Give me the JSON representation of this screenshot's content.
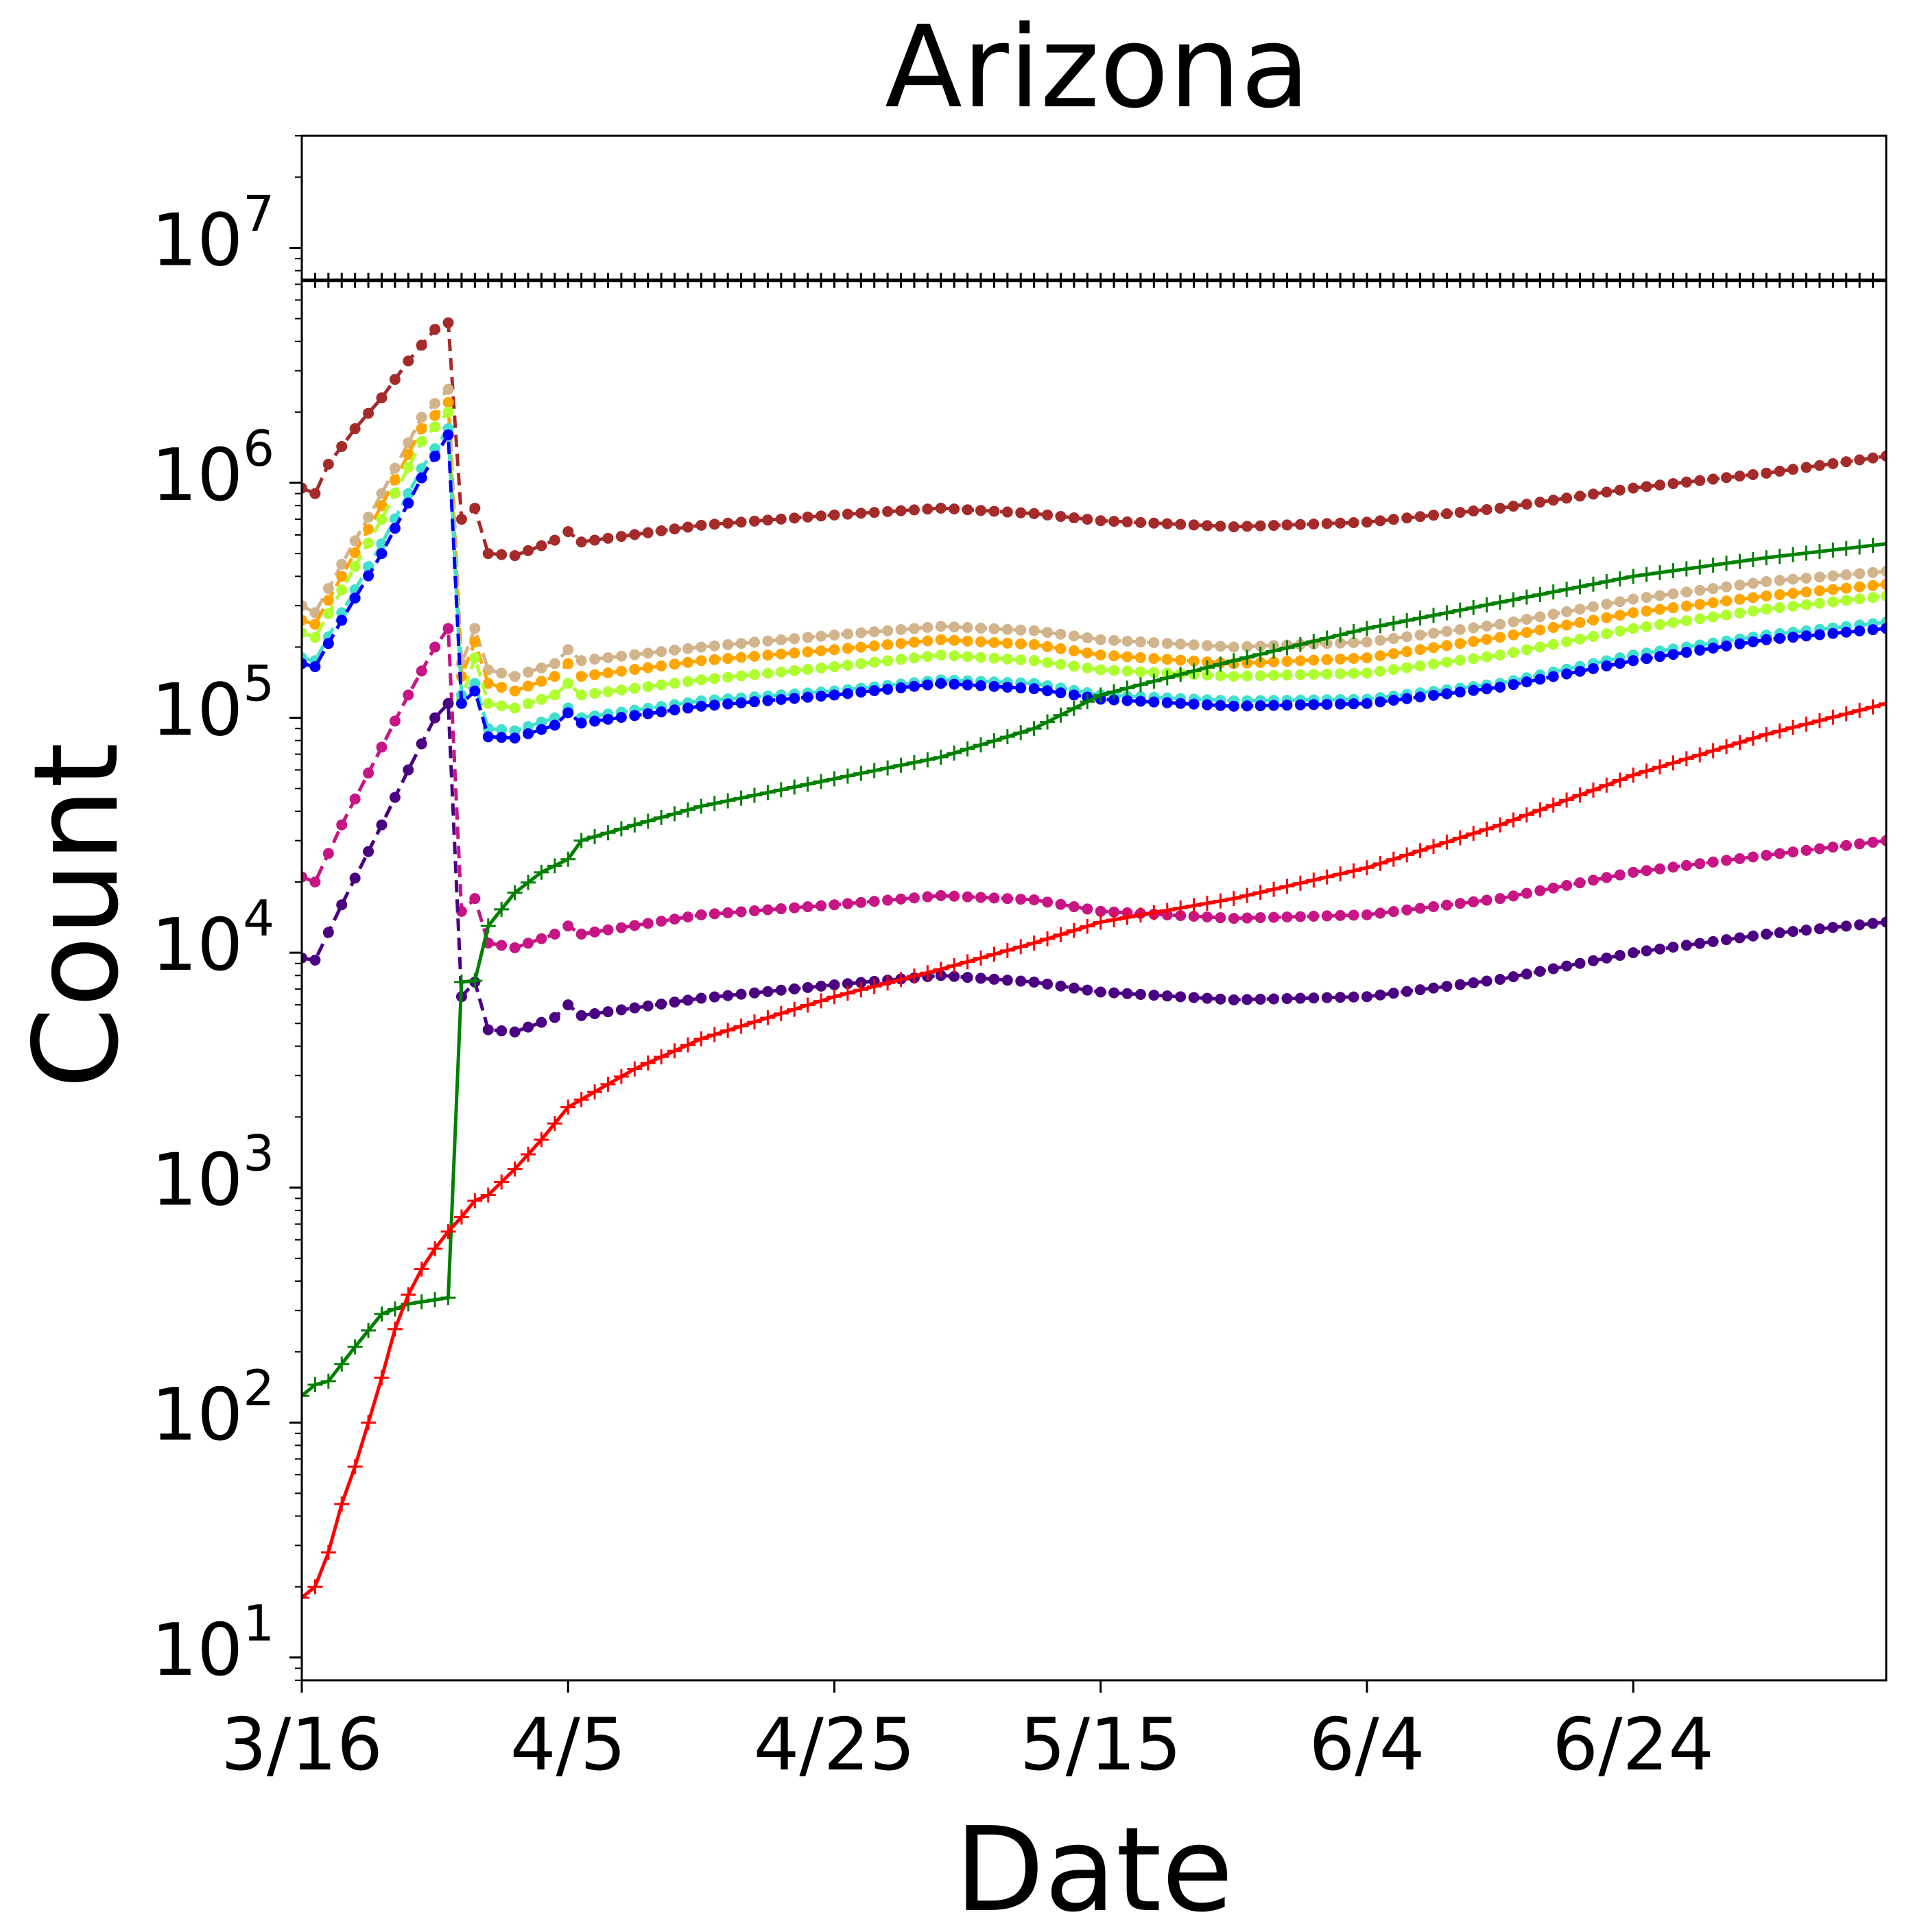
{
  "chart_data": {
    "type": "line",
    "title": "Arizona",
    "xlabel": "Date",
    "ylabel": "Count",
    "yscale": "log",
    "grid": false,
    "legend": "none",
    "x_start": "3/16",
    "x_end": "7/13",
    "xlim": [
      "3/16",
      "7/13"
    ],
    "ylim": [
      8,
      30000000
    ],
    "x_ticks": [
      {
        "date": "3/16",
        "label": "3/16"
      },
      {
        "date": "4/5",
        "label": "4/5"
      },
      {
        "date": "4/25",
        "label": "4/25"
      },
      {
        "date": "5/15",
        "label": "5/15"
      },
      {
        "date": "6/4",
        "label": "6/4"
      },
      {
        "date": "6/24",
        "label": "6/24"
      }
    ],
    "y_ticks": [
      {
        "value": 10,
        "base": "10",
        "exp": "1"
      },
      {
        "value": 100,
        "base": "10",
        "exp": "2"
      },
      {
        "value": 1000,
        "base": "10",
        "exp": "3"
      },
      {
        "value": 10000,
        "base": "10",
        "exp": "4"
      },
      {
        "value": 100000,
        "base": "10",
        "exp": "5"
      },
      {
        "value": 1000000,
        "base": "10",
        "exp": "6"
      },
      {
        "value": 10000000,
        "base": "10",
        "exp": "7"
      }
    ],
    "series": [
      {
        "color": "#000000",
        "style": "solid",
        "marker": "plus",
        "points": [
          [
            "3/16",
            7279000
          ],
          [
            "7/13",
            7279000
          ]
        ]
      },
      {
        "color": "#a52a2a",
        "style": "dashed",
        "marker": "dot",
        "points": [
          [
            "3/16",
            950000
          ],
          [
            "3/17",
            900000
          ],
          [
            "3/18",
            1200000
          ],
          [
            "3/20",
            1700000
          ],
          [
            "3/22",
            2300000
          ],
          [
            "3/24",
            3300000
          ],
          [
            "3/26",
            4500000
          ],
          [
            "3/27",
            4800000
          ],
          [
            "3/28",
            700000
          ],
          [
            "3/29",
            780000
          ],
          [
            "3/30",
            500000
          ],
          [
            "4/1",
            490000
          ],
          [
            "4/3",
            540000
          ],
          [
            "4/4",
            570000
          ],
          [
            "4/5",
            620000
          ],
          [
            "4/6",
            560000
          ],
          [
            "4/15",
            660000
          ],
          [
            "4/25",
            730000
          ],
          [
            "5/3",
            780000
          ],
          [
            "5/10",
            740000
          ],
          [
            "5/15",
            690000
          ],
          [
            "5/25",
            650000
          ],
          [
            "6/4",
            680000
          ],
          [
            "6/14",
            780000
          ],
          [
            "6/24",
            950000
          ],
          [
            "7/4",
            1100000
          ],
          [
            "7/13",
            1300000
          ]
        ]
      },
      {
        "color": "#d2b48c",
        "style": "dashed",
        "marker": "dot",
        "points": [
          [
            "3/16",
            300000
          ],
          [
            "3/17",
            280000
          ],
          [
            "3/19",
            450000
          ],
          [
            "3/22",
            900000
          ],
          [
            "3/25",
            1900000
          ],
          [
            "3/27",
            2500000
          ],
          [
            "3/28",
            170000
          ],
          [
            "3/29",
            240000
          ],
          [
            "3/30",
            160000
          ],
          [
            "4/1",
            150000
          ],
          [
            "4/4",
            170000
          ],
          [
            "4/5",
            195000
          ],
          [
            "4/6",
            175000
          ],
          [
            "4/15",
            200000
          ],
          [
            "4/25",
            225000
          ],
          [
            "5/3",
            245000
          ],
          [
            "5/10",
            235000
          ],
          [
            "5/15",
            215000
          ],
          [
            "5/25",
            200000
          ],
          [
            "6/4",
            210000
          ],
          [
            "6/14",
            250000
          ],
          [
            "6/24",
            320000
          ],
          [
            "7/4",
            380000
          ],
          [
            "7/13",
            420000
          ]
        ]
      },
      {
        "color": "#ffa500",
        "style": "dashed",
        "marker": "dot",
        "points": [
          [
            "3/16",
            260000
          ],
          [
            "3/17",
            250000
          ],
          [
            "3/19",
            400000
          ],
          [
            "3/22",
            800000
          ],
          [
            "3/25",
            1700000
          ],
          [
            "3/27",
            2200000
          ],
          [
            "3/28",
            150000
          ],
          [
            "3/29",
            210000
          ],
          [
            "3/30",
            140000
          ],
          [
            "4/1",
            130000
          ],
          [
            "4/4",
            150000
          ],
          [
            "4/5",
            170000
          ],
          [
            "4/6",
            150000
          ],
          [
            "4/15",
            175000
          ],
          [
            "4/25",
            195000
          ],
          [
            "5/3",
            215000
          ],
          [
            "5/10",
            205000
          ],
          [
            "5/15",
            185000
          ],
          [
            "5/25",
            170000
          ],
          [
            "6/4",
            180000
          ],
          [
            "6/14",
            220000
          ],
          [
            "6/24",
            280000
          ],
          [
            "7/4",
            330000
          ],
          [
            "7/13",
            370000
          ]
        ]
      },
      {
        "color": "#adff2f",
        "style": "dashed",
        "marker": "dot",
        "points": [
          [
            "3/16",
            230000
          ],
          [
            "3/17",
            220000
          ],
          [
            "3/19",
            350000
          ],
          [
            "3/22",
            700000
          ],
          [
            "3/25",
            1500000
          ],
          [
            "3/27",
            2000000
          ],
          [
            "3/28",
            120000
          ],
          [
            "3/29",
            180000
          ],
          [
            "3/30",
            115000
          ],
          [
            "4/1",
            110000
          ],
          [
            "4/4",
            125000
          ],
          [
            "4/5",
            140000
          ],
          [
            "4/6",
            125000
          ],
          [
            "4/15",
            145000
          ],
          [
            "4/25",
            165000
          ],
          [
            "5/3",
            185000
          ],
          [
            "5/10",
            175000
          ],
          [
            "5/15",
            160000
          ],
          [
            "5/25",
            150000
          ],
          [
            "6/4",
            155000
          ],
          [
            "6/14",
            185000
          ],
          [
            "6/24",
            240000
          ],
          [
            "7/4",
            290000
          ],
          [
            "7/13",
            330000
          ]
        ]
      },
      {
        "color": "#40e0d0",
        "style": "dashed",
        "marker": "dot",
        "points": [
          [
            "3/16",
            180000
          ],
          [
            "3/17",
            175000
          ],
          [
            "3/19",
            280000
          ],
          [
            "3/22",
            550000
          ],
          [
            "3/25",
            1150000
          ],
          [
            "3/27",
            1700000
          ],
          [
            "3/28",
            125000
          ],
          [
            "3/29",
            140000
          ],
          [
            "3/30",
            90000
          ],
          [
            "4/1",
            88000
          ],
          [
            "4/4",
            100000
          ],
          [
            "4/5",
            110000
          ],
          [
            "4/6",
            100000
          ],
          [
            "4/15",
            118000
          ],
          [
            "4/25",
            130000
          ],
          [
            "5/3",
            145000
          ],
          [
            "5/10",
            140000
          ],
          [
            "5/15",
            125000
          ],
          [
            "5/25",
            118000
          ],
          [
            "6/4",
            120000
          ],
          [
            "6/14",
            140000
          ],
          [
            "6/24",
            185000
          ],
          [
            "7/4",
            225000
          ],
          [
            "7/13",
            255000
          ]
        ]
      },
      {
        "color": "#0000ff",
        "style": "dashed",
        "marker": "dot",
        "points": [
          [
            "3/16",
            170000
          ],
          [
            "3/17",
            165000
          ],
          [
            "3/19",
            260000
          ],
          [
            "3/22",
            500000
          ],
          [
            "3/25",
            1050000
          ],
          [
            "3/27",
            1600000
          ],
          [
            "3/28",
            115000
          ],
          [
            "3/29",
            130000
          ],
          [
            "3/30",
            83000
          ],
          [
            "4/1",
            82000
          ],
          [
            "4/4",
            93000
          ],
          [
            "4/5",
            105000
          ],
          [
            "4/6",
            95000
          ],
          [
            "4/15",
            112000
          ],
          [
            "4/25",
            125000
          ],
          [
            "5/3",
            140000
          ],
          [
            "5/10",
            133000
          ],
          [
            "5/15",
            120000
          ],
          [
            "5/25",
            112000
          ],
          [
            "6/4",
            115000
          ],
          [
            "6/14",
            135000
          ],
          [
            "6/24",
            175000
          ],
          [
            "7/4",
            215000
          ],
          [
            "7/13",
            240000
          ]
        ]
      },
      {
        "color": "#c71585",
        "style": "dashed",
        "marker": "dot",
        "points": [
          [
            "3/16",
            21000
          ],
          [
            "3/17",
            20000
          ],
          [
            "3/19",
            35000
          ],
          [
            "3/22",
            75000
          ],
          [
            "3/24",
            125000
          ],
          [
            "3/26",
            200000
          ],
          [
            "3/27",
            240000
          ],
          [
            "3/28",
            15000
          ],
          [
            "3/29",
            17000
          ],
          [
            "3/30",
            11000
          ],
          [
            "4/1",
            10500
          ],
          [
            "4/4",
            12000
          ],
          [
            "4/5",
            13000
          ],
          [
            "4/6",
            12000
          ],
          [
            "4/15",
            14500
          ],
          [
            "4/25",
            16000
          ],
          [
            "5/3",
            17500
          ],
          [
            "5/10",
            16800
          ],
          [
            "5/15",
            15000
          ],
          [
            "5/25",
            14000
          ],
          [
            "6/4",
            14500
          ],
          [
            "6/14",
            17000
          ],
          [
            "6/24",
            22000
          ],
          [
            "7/4",
            26000
          ],
          [
            "7/13",
            30000
          ]
        ]
      },
      {
        "color": "#4b0082",
        "style": "dashed",
        "marker": "dot",
        "points": [
          [
            "3/16",
            9500
          ],
          [
            "3/17",
            9300
          ],
          [
            "3/19",
            16000
          ],
          [
            "3/22",
            35000
          ],
          [
            "3/24",
            60000
          ],
          [
            "3/26",
            100000
          ],
          [
            "3/27",
            115000
          ],
          [
            "3/28",
            6500
          ],
          [
            "3/29",
            7500
          ],
          [
            "3/30",
            4700
          ],
          [
            "4/1",
            4600
          ],
          [
            "4/4",
            5300
          ],
          [
            "4/5",
            6000
          ],
          [
            "4/6",
            5400
          ],
          [
            "4/15",
            6400
          ],
          [
            "4/25",
            7300
          ],
          [
            "5/3",
            8000
          ],
          [
            "5/10",
            7500
          ],
          [
            "5/15",
            6800
          ],
          [
            "5/25",
            6300
          ],
          [
            "6/4",
            6500
          ],
          [
            "6/14",
            7700
          ],
          [
            "6/24",
            10000
          ],
          [
            "7/4",
            12000
          ],
          [
            "7/13",
            13500
          ]
        ]
      },
      {
        "color": "#008000",
        "style": "solid",
        "marker": "plus",
        "points": [
          [
            "3/16",
            130
          ],
          [
            "3/17",
            145
          ],
          [
            "3/18",
            150
          ],
          [
            "3/20",
            210
          ],
          [
            "3/22",
            290
          ],
          [
            "3/24",
            320
          ],
          [
            "3/27",
            340
          ],
          [
            "3/28",
            7500
          ],
          [
            "3/29",
            7600
          ],
          [
            "3/30",
            13000
          ],
          [
            "4/1",
            18000
          ],
          [
            "4/3",
            22000
          ],
          [
            "4/5",
            25000
          ],
          [
            "4/6",
            30000
          ],
          [
            "4/10",
            35000
          ],
          [
            "4/15",
            42000
          ],
          [
            "4/25",
            55000
          ],
          [
            "5/3",
            68000
          ],
          [
            "5/10",
            90000
          ],
          [
            "5/15",
            125000
          ],
          [
            "5/25",
            175000
          ],
          [
            "6/4",
            240000
          ],
          [
            "6/14",
            310000
          ],
          [
            "6/24",
            400000
          ],
          [
            "7/4",
            480000
          ],
          [
            "7/13",
            550000
          ]
        ]
      },
      {
        "color": "#ff0000",
        "style": "solid",
        "marker": "plus",
        "points": [
          [
            "3/16",
            18
          ],
          [
            "3/17",
            20
          ],
          [
            "3/18",
            28
          ],
          [
            "3/19",
            45
          ],
          [
            "3/20",
            65
          ],
          [
            "3/21",
            100
          ],
          [
            "3/22",
            155
          ],
          [
            "3/23",
            250
          ],
          [
            "3/24",
            350
          ],
          [
            "3/25",
            450
          ],
          [
            "3/26",
            550
          ],
          [
            "3/27",
            650
          ],
          [
            "3/28",
            750
          ],
          [
            "3/29",
            880
          ],
          [
            "3/30",
            930
          ],
          [
            "4/1",
            1200
          ],
          [
            "4/3",
            1600
          ],
          [
            "4/5",
            2200
          ],
          [
            "4/10",
            3200
          ],
          [
            "4/15",
            4300
          ],
          [
            "4/25",
            6500
          ],
          [
            "5/3",
            8500
          ],
          [
            "5/10",
            11000
          ],
          [
            "5/15",
            13500
          ],
          [
            "5/25",
            17000
          ],
          [
            "6/4",
            23000
          ],
          [
            "6/14",
            35000
          ],
          [
            "6/24",
            57000
          ],
          [
            "7/4",
            85000
          ],
          [
            "7/13",
            115000
          ]
        ]
      }
    ]
  }
}
